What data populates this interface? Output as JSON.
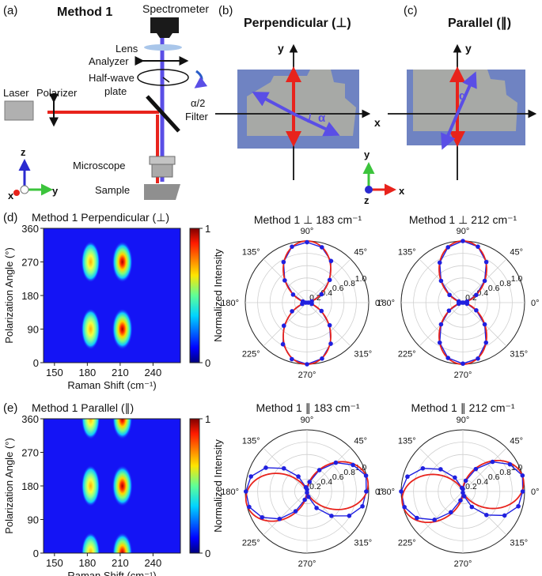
{
  "panels": {
    "a": {
      "label": "(a)",
      "title": "Method 1"
    },
    "b": {
      "label": "(b)",
      "title": "Perpendicular (⊥)"
    },
    "c": {
      "label": "(c)",
      "title": "Parallel (∥)"
    },
    "d": {
      "label": "(d)"
    },
    "e": {
      "label": "(e)"
    }
  },
  "setup": {
    "spectrometer": "Spectrometer",
    "lens": "Lens",
    "analyzer": "Analyzer",
    "halfwave_line1": "Half-wave",
    "halfwave_line2": "plate",
    "rotation": "α/2",
    "filter": "Filter",
    "laser": "Laser",
    "polarizer": "Polarizer",
    "microscope": "Microscope",
    "sample": "Sample"
  },
  "axes_labels": {
    "x": "x",
    "y": "y",
    "z": "z",
    "alpha": "α"
  },
  "colors": {
    "laser_beam": "#e8231c",
    "scattered_beam": "#5a4ee6",
    "polar_fit": "#e8231c",
    "polar_points": "#2020e0",
    "triad_x": "#e8231c",
    "triad_y": "#3cc43c",
    "triad_z": "#2a2ad0"
  },
  "chart_data": [
    {
      "type": "heatmap",
      "title": "Method 1 Perpendicular (⊥)",
      "xlabel": "Raman Shift (cm⁻¹)",
      "ylabel": "Polarization Angle (°)",
      "x_ticks": [
        150,
        180,
        210,
        240
      ],
      "y_ticks": [
        0,
        90,
        180,
        270,
        360
      ],
      "xlim": [
        140,
        265
      ],
      "ylim": [
        0,
        360
      ],
      "colorbar": {
        "label": "Normalized Intensity",
        "ticks": [
          0,
          1
        ]
      },
      "peaks": [
        {
          "x": 183,
          "y": 90,
          "intensity": 0.7
        },
        {
          "x": 183,
          "y": 270,
          "intensity": 0.7
        },
        {
          "x": 212,
          "y": 90,
          "intensity": 1.0
        },
        {
          "x": 212,
          "y": 270,
          "intensity": 1.0
        }
      ]
    },
    {
      "type": "heatmap",
      "title": "Method 1 Parallel (∥)",
      "xlabel": "Raman Shift (cm⁻¹)",
      "ylabel": "Polarization Angle (°)",
      "x_ticks": [
        150,
        180,
        210,
        240
      ],
      "y_ticks": [
        0,
        90,
        180,
        270,
        360
      ],
      "xlim": [
        140,
        265
      ],
      "ylim": [
        0,
        360
      ],
      "colorbar": {
        "label": "Normalized Intensity",
        "ticks": [
          0,
          1
        ]
      },
      "peaks": [
        {
          "x": 183,
          "y": 0,
          "intensity": 0.65
        },
        {
          "x": 183,
          "y": 180,
          "intensity": 0.65
        },
        {
          "x": 183,
          "y": 360,
          "intensity": 0.65
        },
        {
          "x": 212,
          "y": 0,
          "intensity": 0.9
        },
        {
          "x": 212,
          "y": 180,
          "intensity": 1.0
        },
        {
          "x": 212,
          "y": 360,
          "intensity": 0.9
        }
      ]
    },
    {
      "type": "polar",
      "title": "Method 1 ⊥ 183 cm⁻¹",
      "angle_ticks": [
        "0°",
        "45°",
        "90°",
        "135°",
        "180°",
        "225°",
        "270°",
        "315°"
      ],
      "r_ticks": [
        "0.2",
        "0.4",
        "0.6",
        "0.8",
        "1.0"
      ],
      "fit": {
        "lobe_axis_deg": 90,
        "petal_scale": 0.5
      },
      "points_angle_deg": [
        0,
        15,
        30,
        45,
        60,
        75,
        90,
        105,
        120,
        135,
        150,
        165,
        180,
        195,
        210,
        225,
        240,
        255,
        270,
        285,
        300,
        315,
        330,
        345
      ],
      "points_r": [
        0.02,
        0.08,
        0.27,
        0.52,
        0.78,
        0.93,
        0.98,
        0.94,
        0.76,
        0.51,
        0.26,
        0.07,
        0.02,
        0.08,
        0.28,
        0.53,
        0.78,
        0.95,
        1.0,
        0.94,
        0.77,
        0.52,
        0.27,
        0.08
      ]
    },
    {
      "type": "polar",
      "title": "Method 1 ⊥ 212 cm⁻¹",
      "angle_ticks": [
        "0°",
        "45°",
        "90°",
        "135°",
        "180°",
        "225°",
        "270°",
        "315°"
      ],
      "r_ticks": [
        "0.2",
        "0.4",
        "0.6",
        "0.8",
        "1.0"
      ],
      "fit": {
        "lobe_axis_deg": 90,
        "petal_scale": 0.5
      },
      "points_angle_deg": [
        0,
        15,
        30,
        45,
        60,
        75,
        90,
        105,
        120,
        135,
        150,
        165,
        180,
        195,
        210,
        225,
        240,
        255,
        270,
        285,
        300,
        315,
        330,
        345
      ],
      "points_r": [
        0.01,
        0.07,
        0.25,
        0.5,
        0.76,
        0.94,
        1.0,
        0.93,
        0.75,
        0.5,
        0.25,
        0.07,
        0.01,
        0.07,
        0.26,
        0.5,
        0.75,
        0.93,
        0.99,
        0.94,
        0.75,
        0.5,
        0.25,
        0.07
      ]
    },
    {
      "type": "polar",
      "title": "Method 1 ∥ 183 cm⁻¹",
      "angle_ticks": [
        "0°",
        "45°",
        "90°",
        "135°",
        "180°",
        "225°",
        "270°",
        "315°"
      ],
      "r_ticks": [
        "0.2",
        "0.4",
        "0.6",
        "0.8",
        "1.0"
      ],
      "fit": {
        "lobe_axis_deg": 10,
        "petal_scale": 0.5
      },
      "points_angle_deg": [
        0,
        15,
        30,
        45,
        60,
        75,
        90,
        105,
        120,
        135,
        150,
        165,
        180,
        195,
        210,
        225,
        240,
        255,
        270,
        285,
        300,
        315,
        330,
        345
      ],
      "points_r": [
        0.96,
        0.99,
        0.86,
        0.66,
        0.4,
        0.16,
        0.03,
        0.07,
        0.28,
        0.53,
        0.77,
        0.94,
        0.99,
        0.97,
        0.84,
        0.63,
        0.37,
        0.14,
        0.02,
        0.09,
        0.31,
        0.56,
        0.79,
        0.93
      ]
    },
    {
      "type": "polar",
      "title": "Method 1 ∥ 212 cm⁻¹",
      "angle_ticks": [
        "0°",
        "45°",
        "90°",
        "135°",
        "180°",
        "225°",
        "270°",
        "315°"
      ],
      "r_ticks": [
        "0.2",
        "0.4",
        "0.6",
        "0.8",
        "1.0"
      ],
      "fit": {
        "lobe_axis_deg": 12,
        "petal_scale": 0.5
      },
      "points_angle_deg": [
        0,
        15,
        30,
        45,
        60,
        75,
        90,
        105,
        120,
        135,
        150,
        165,
        180,
        195,
        210,
        225,
        240,
        255,
        270,
        285,
        300,
        315,
        330,
        345
      ],
      "points_r": [
        0.97,
        1.0,
        0.88,
        0.68,
        0.42,
        0.18,
        0.04,
        0.06,
        0.26,
        0.51,
        0.75,
        0.93,
        1.0,
        0.98,
        0.86,
        0.65,
        0.39,
        0.15,
        0.02,
        0.08,
        0.29,
        0.54,
        0.78,
        0.93
      ]
    }
  ]
}
